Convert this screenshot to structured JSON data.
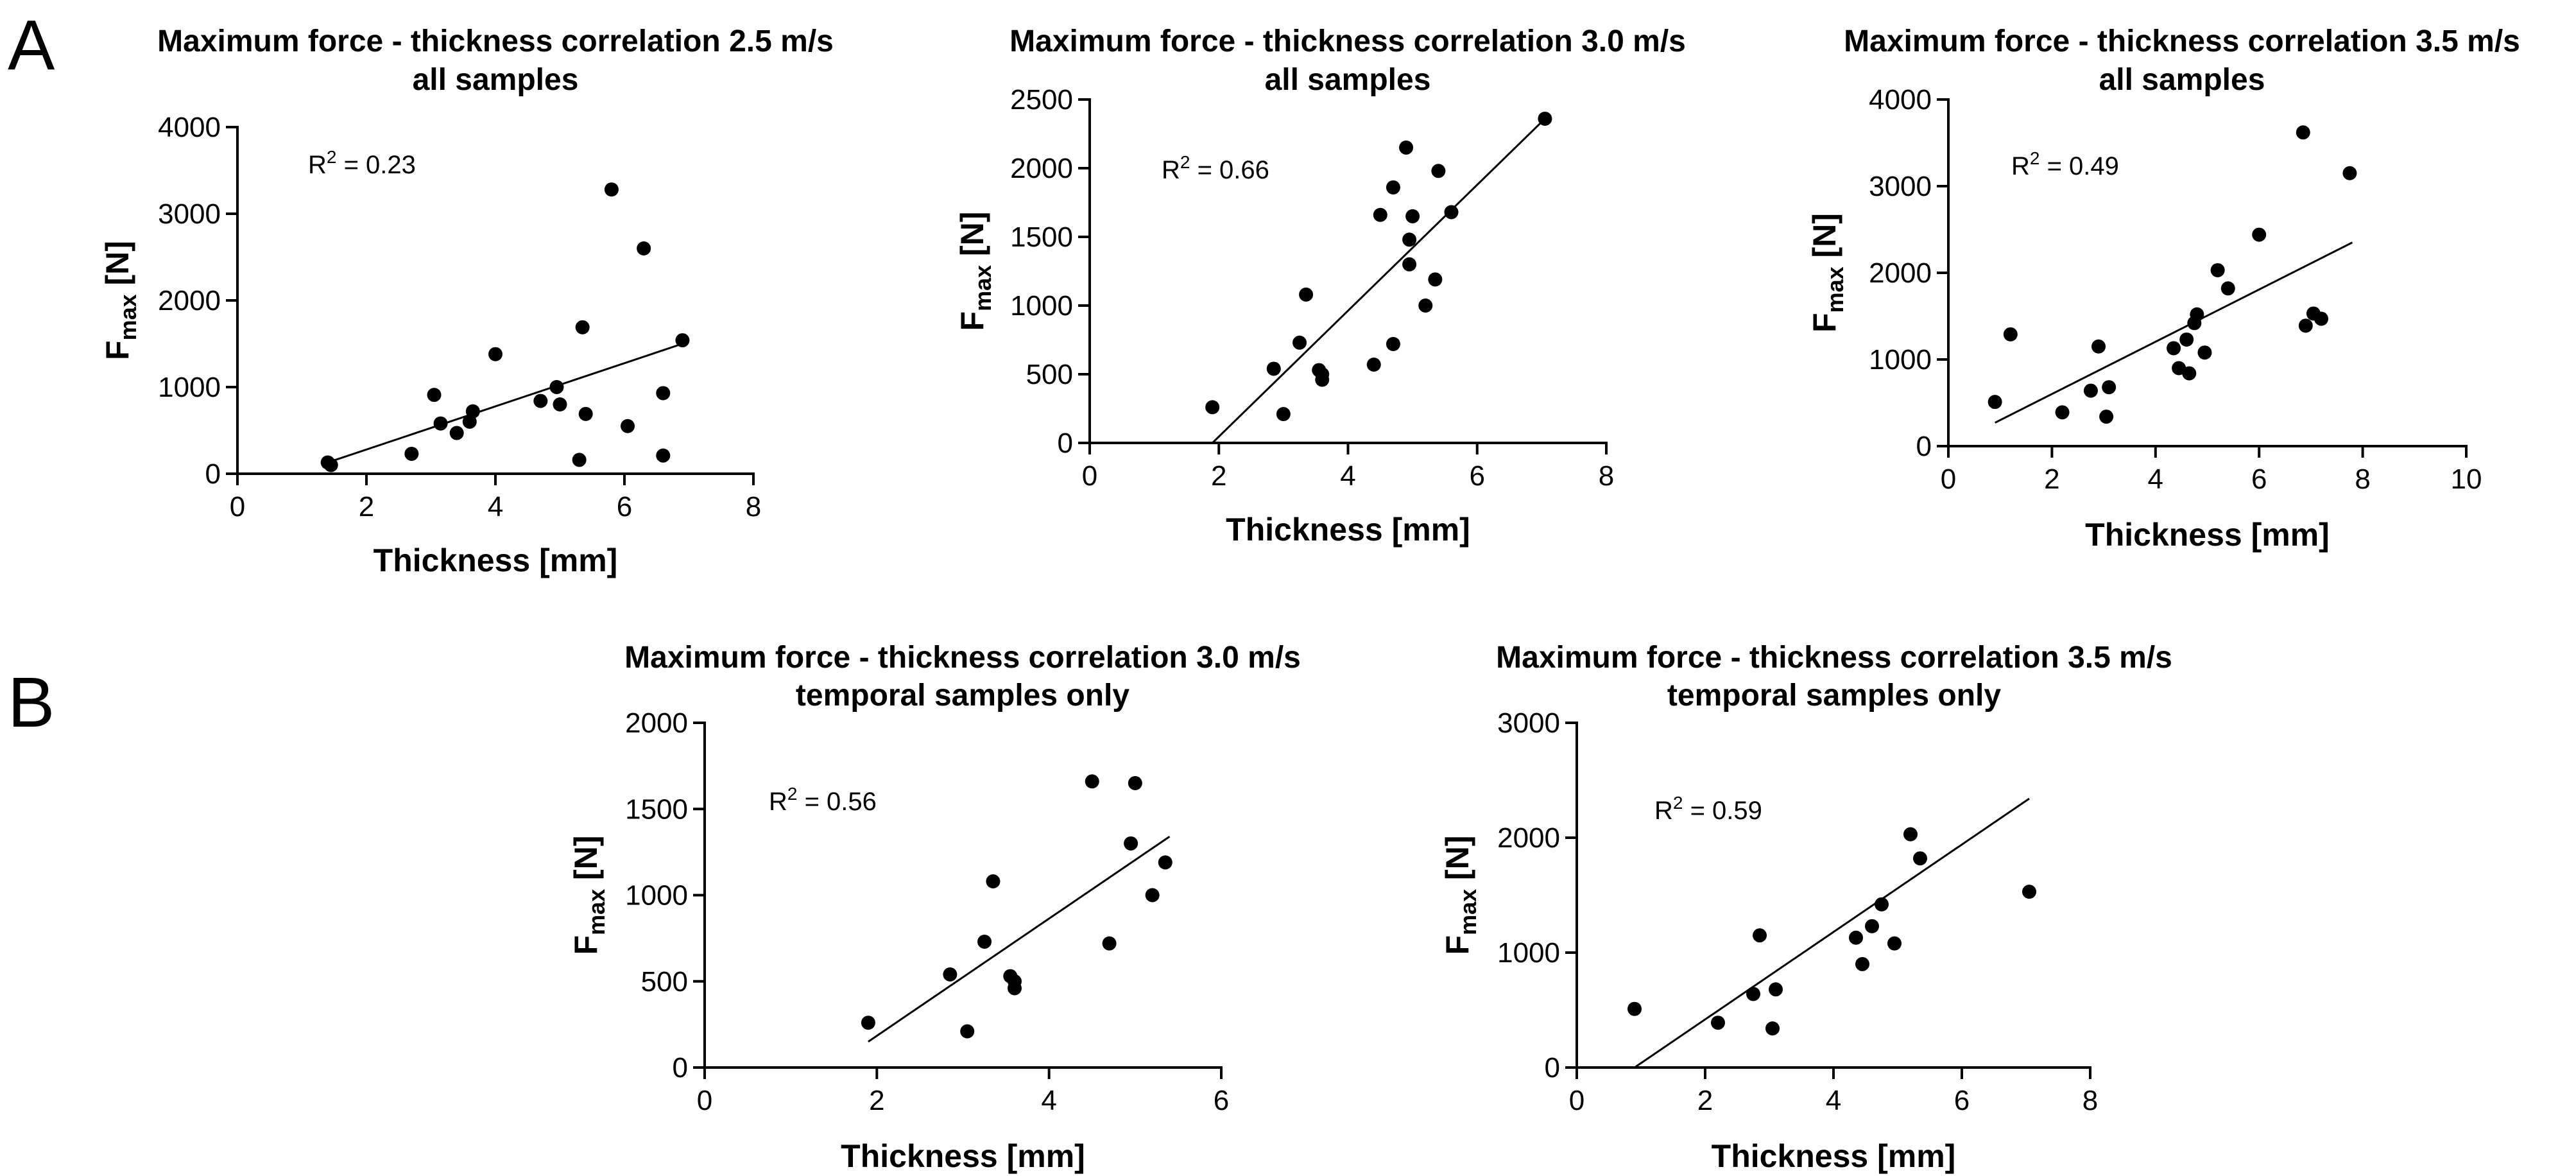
{
  "panels": {
    "A": "A",
    "B": "B"
  },
  "chart_data": [
    {
      "type": "scatter",
      "panel": "A",
      "title": [
        "Maximum force - thickness correlation 2.5 m/s",
        "all samples"
      ],
      "xlabel": "Thickness [mm]",
      "ylabel": {
        "main": "F",
        "sub": "max",
        "unit": " [N]"
      },
      "xlim": [
        0,
        8
      ],
      "ylim": [
        0,
        4000
      ],
      "xticks": [
        0,
        2,
        4,
        6,
        8
      ],
      "yticks": [
        0,
        1000,
        2000,
        3000,
        4000
      ],
      "r2": {
        "base": "R",
        "sup": "2",
        "value": " = 0.23"
      },
      "fit": {
        "x": [
          1.4,
          6.9
        ],
        "y": [
          130,
          1500
        ]
      },
      "points": [
        [
          1.4,
          130
        ],
        [
          1.45,
          100
        ],
        [
          2.7,
          230
        ],
        [
          3.05,
          910
        ],
        [
          3.15,
          580
        ],
        [
          3.4,
          470
        ],
        [
          3.6,
          600
        ],
        [
          3.65,
          720
        ],
        [
          4.0,
          1380
        ],
        [
          4.7,
          840
        ],
        [
          4.95,
          1000
        ],
        [
          5.0,
          800
        ],
        [
          5.3,
          160
        ],
        [
          5.35,
          1690
        ],
        [
          5.4,
          690
        ],
        [
          5.8,
          3280
        ],
        [
          6.05,
          550
        ],
        [
          6.3,
          2600
        ],
        [
          6.6,
          930
        ],
        [
          6.6,
          210
        ],
        [
          6.9,
          1540
        ]
      ]
    },
    {
      "type": "scatter",
      "panel": "A",
      "title": [
        "Maximum force - thickness correlation 3.0 m/s",
        "all samples"
      ],
      "xlabel": "Thickness [mm]",
      "ylabel": {
        "main": "F",
        "sub": "max",
        "unit": " [N]"
      },
      "xlim": [
        0,
        8
      ],
      "ylim": [
        0,
        2500
      ],
      "xticks": [
        0,
        2,
        4,
        6,
        8
      ],
      "yticks": [
        0,
        500,
        1000,
        1500,
        2000,
        2500
      ],
      "r2": {
        "base": "R",
        "sup": "2",
        "value": " = 0.66"
      },
      "fit": {
        "x": [
          1.9,
          7.05
        ],
        "y": [
          0,
          2360
        ]
      },
      "points": [
        [
          1.9,
          260
        ],
        [
          2.85,
          540
        ],
        [
          3.0,
          210
        ],
        [
          3.25,
          730
        ],
        [
          3.35,
          1080
        ],
        [
          3.55,
          530
        ],
        [
          3.6,
          500
        ],
        [
          3.6,
          460
        ],
        [
          4.4,
          570
        ],
        [
          4.5,
          1660
        ],
        [
          4.7,
          1860
        ],
        [
          4.7,
          720
        ],
        [
          4.9,
          2150
        ],
        [
          4.95,
          1300
        ],
        [
          4.95,
          1480
        ],
        [
          5.0,
          1650
        ],
        [
          5.2,
          1000
        ],
        [
          5.35,
          1190
        ],
        [
          5.4,
          1980
        ],
        [
          5.6,
          1680
        ],
        [
          7.05,
          2360
        ]
      ]
    },
    {
      "type": "scatter",
      "panel": "A",
      "title": [
        "Maximum force - thickness correlation 3.5 m/s",
        "all samples"
      ],
      "xlabel": "Thickness [mm]",
      "ylabel": {
        "main": "F",
        "sub": "max",
        "unit": " [N]"
      },
      "xlim": [
        0,
        10
      ],
      "ylim": [
        0,
        4000
      ],
      "xticks": [
        0,
        2,
        4,
        6,
        8,
        10
      ],
      "yticks": [
        0,
        1000,
        2000,
        3000,
        4000
      ],
      "r2": {
        "base": "R",
        "sup": "2",
        "value": " = 0.49"
      },
      "fit": {
        "x": [
          0.9,
          7.8
        ],
        "y": [
          270,
          2350
        ]
      },
      "points": [
        [
          0.9,
          510
        ],
        [
          1.2,
          1290
        ],
        [
          2.2,
          390
        ],
        [
          2.75,
          640
        ],
        [
          2.9,
          1150
        ],
        [
          3.05,
          340
        ],
        [
          3.1,
          680
        ],
        [
          4.35,
          1130
        ],
        [
          4.45,
          900
        ],
        [
          4.6,
          1230
        ],
        [
          4.65,
          840
        ],
        [
          4.75,
          1420
        ],
        [
          4.8,
          1520
        ],
        [
          4.95,
          1080
        ],
        [
          5.2,
          2030
        ],
        [
          5.4,
          1820
        ],
        [
          6.0,
          2440
        ],
        [
          6.85,
          3620
        ],
        [
          6.9,
          1390
        ],
        [
          7.05,
          1530
        ],
        [
          7.2,
          1470
        ],
        [
          7.75,
          3150
        ]
      ]
    },
    {
      "type": "scatter",
      "panel": "B",
      "title": [
        "Maximum force - thickness correlation 3.0 m/s",
        "temporal samples only"
      ],
      "xlabel": "Thickness [mm]",
      "ylabel": {
        "main": "F",
        "sub": "max",
        "unit": " [N]"
      },
      "xlim": [
        0,
        6
      ],
      "ylim": [
        0,
        2000
      ],
      "xticks": [
        0,
        2,
        4,
        6
      ],
      "yticks": [
        0,
        500,
        1000,
        1500,
        2000
      ],
      "r2": {
        "base": "R",
        "sup": "2",
        "value": " = 0.56"
      },
      "fit": {
        "x": [
          1.9,
          5.4
        ],
        "y": [
          150,
          1340
        ]
      },
      "points": [
        [
          1.9,
          260
        ],
        [
          2.85,
          540
        ],
        [
          3.05,
          210
        ],
        [
          3.25,
          730
        ],
        [
          3.35,
          1080
        ],
        [
          3.55,
          530
        ],
        [
          3.6,
          500
        ],
        [
          3.6,
          460
        ],
        [
          4.5,
          1660
        ],
        [
          4.7,
          720
        ],
        [
          4.95,
          1300
        ],
        [
          5.0,
          1650
        ],
        [
          5.2,
          1000
        ],
        [
          5.35,
          1190
        ]
      ]
    },
    {
      "type": "scatter",
      "panel": "B",
      "title": [
        "Maximum force - thickness correlation 3.5 m/s",
        "temporal samples only"
      ],
      "xlabel": "Thickness [mm]",
      "ylabel": {
        "main": "F",
        "sub": "max",
        "unit": " [N]"
      },
      "xlim": [
        0,
        8
      ],
      "ylim": [
        0,
        3000
      ],
      "xticks": [
        0,
        2,
        4,
        6,
        8
      ],
      "yticks": [
        0,
        1000,
        2000,
        3000
      ],
      "r2": {
        "base": "R",
        "sup": "2",
        "value": " = 0.59"
      },
      "fit": {
        "x": [
          0.9,
          7.05
        ],
        "y": [
          0,
          2340
        ]
      },
      "points": [
        [
          0.9,
          510
        ],
        [
          2.2,
          390
        ],
        [
          2.75,
          640
        ],
        [
          2.85,
          1150
        ],
        [
          3.05,
          340
        ],
        [
          3.1,
          680
        ],
        [
          4.35,
          1130
        ],
        [
          4.45,
          900
        ],
        [
          4.6,
          1230
        ],
        [
          4.75,
          1420
        ],
        [
          4.95,
          1080
        ],
        [
          5.2,
          2030
        ],
        [
          5.35,
          1820
        ],
        [
          7.05,
          1530
        ]
      ]
    }
  ]
}
